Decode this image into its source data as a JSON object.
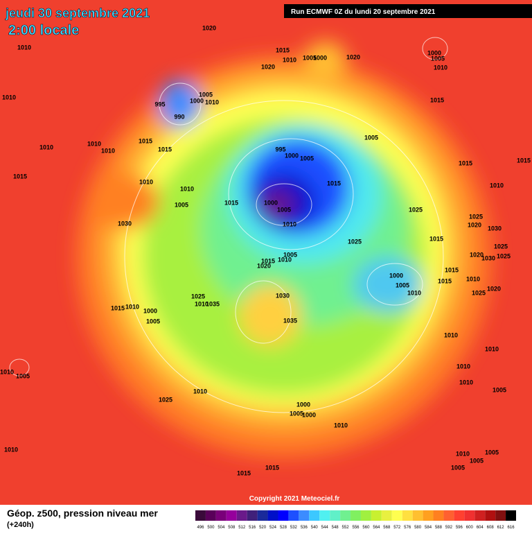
{
  "header": {
    "date": "jeudi 30 septembre 2021",
    "time": "2:00 locale",
    "run": "Run ECMWF 0Z du lundi 20 septembre 2021"
  },
  "map": {
    "pressure_labels": [
      "1020",
      "1010",
      "1015",
      "1010",
      "1005",
      "1000",
      "1020",
      "1020",
      "1000",
      "1005",
      "1010",
      "1010",
      "1005",
      "995",
      "1000",
      "1010",
      "990",
      "1015",
      "1010",
      "1010",
      "1010",
      "1015",
      "1015",
      "1005",
      "995",
      "1000",
      "1005",
      "1015",
      "1015",
      "1010",
      "1010",
      "1015",
      "1015",
      "1010",
      "1015",
      "1005",
      "1000",
      "1005",
      "1025",
      "1025",
      "1020",
      "1030",
      "1030",
      "1010",
      "1015",
      "1025",
      "1005",
      "1025",
      "1030",
      "1025",
      "1020",
      "1015",
      "1010",
      "1020",
      "1015",
      "1000",
      "1015",
      "1010",
      "1005",
      "1010",
      "1020",
      "1025",
      "1030",
      "1025",
      "1010",
      "1035",
      "1015",
      "1010",
      "1000",
      "1005",
      "1035",
      "1010",
      "1010",
      "1010",
      "1005",
      "1010",
      "1010",
      "1010",
      "1005",
      "1025",
      "1000",
      "1005",
      "1000",
      "1010",
      "1010",
      "1010",
      "1005",
      "1005",
      "1005",
      "1015",
      "1015"
    ],
    "copyright": "Copyright 2021 Meteociel.fr"
  },
  "footer": {
    "title": "Géop. z500, pression niveau mer",
    "lead": "(+240h)",
    "scale_labels": [
      "496",
      "500",
      "504",
      "508",
      "512",
      "516",
      "520",
      "524",
      "528",
      "532",
      "536",
      "540",
      "544",
      "548",
      "552",
      "556",
      "560",
      "564",
      "568",
      "572",
      "576",
      "580",
      "584",
      "588",
      "592",
      "596",
      "600",
      "604",
      "608",
      "612",
      "616"
    ],
    "scale_colors": [
      "#3a0a3a",
      "#5a005a",
      "#7a007a",
      "#96009c",
      "#6a1a8a",
      "#40207a",
      "#1a2a9a",
      "#0010c8",
      "#0000ff",
      "#1e50ff",
      "#3c8cff",
      "#3cc8ff",
      "#50f0f0",
      "#60f0c8",
      "#70f090",
      "#80f060",
      "#a0f040",
      "#c8f030",
      "#e8f040",
      "#ffff50",
      "#ffe040",
      "#ffc030",
      "#ffa020",
      "#ff8020",
      "#ff6030",
      "#ff4030",
      "#f03030",
      "#d02020",
      "#b01010",
      "#801010",
      "#000000"
    ]
  }
}
